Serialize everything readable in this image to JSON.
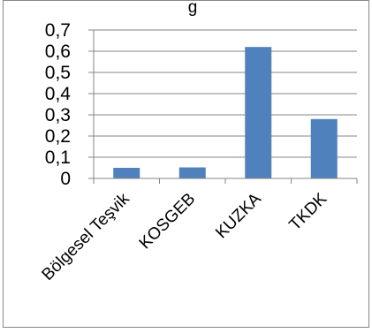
{
  "chart_data": {
    "type": "bar",
    "title": "g",
    "categories": [
      "Bölgesel Teşvik",
      "KOSGEB",
      "KUZKA",
      "TKDK"
    ],
    "values": [
      0.05,
      0.052,
      0.62,
      0.28
    ],
    "ylim": [
      0,
      0.7
    ],
    "ytick_labels": [
      "0",
      "0,1",
      "0,2",
      "0,3",
      "0,4",
      "0,5",
      "0,6",
      "0,7"
    ],
    "grid": true,
    "legend": "none",
    "colors": {
      "bar": "#4f81bd",
      "grid": "#868686",
      "axis": "#868686",
      "border": "#868686"
    }
  }
}
